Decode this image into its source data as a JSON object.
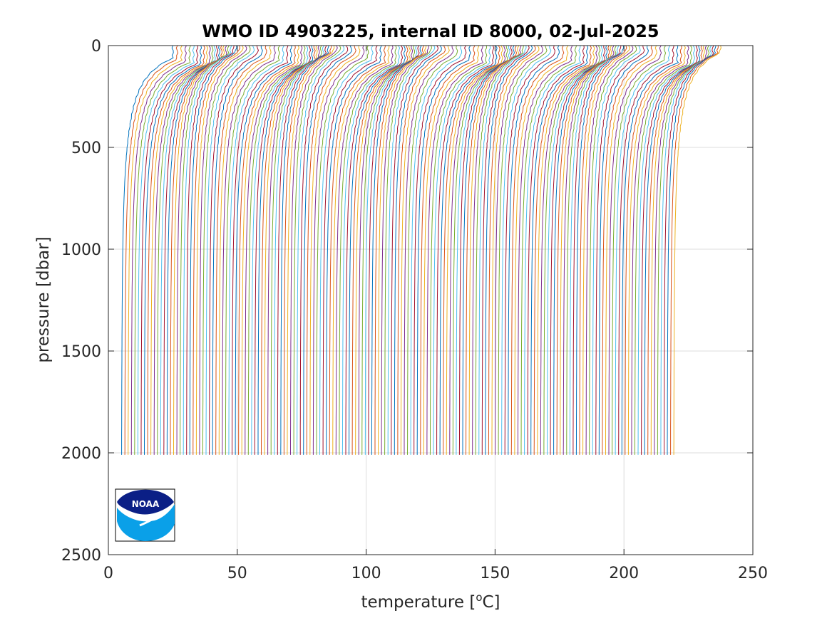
{
  "chart_data": {
    "type": "line",
    "title": "WMO ID 4903225, internal ID 8000, 02-Jul-2025",
    "xlabel": "temperature [",
    "xlabel_unit_sup": "o",
    "xlabel_unit_tail": "C]",
    "ylabel": "pressure [dbar]",
    "xlim": [
      0,
      250
    ],
    "ylim": [
      0,
      2500
    ],
    "y_reversed": true,
    "grid": true,
    "x_ticks": [
      "0",
      "50",
      "100",
      "150",
      "200",
      "250"
    ],
    "y_ticks": [
      "0",
      "500",
      "1000",
      "1500",
      "2000",
      "2500"
    ],
    "series_layout": "waterfall: each profile offset ~1.26 °C to the right of the previous",
    "profile_count": 171,
    "profile_offset_start": 5,
    "profile_offset_step": 1.26,
    "profile_surface_temp": 22,
    "profile_deep_temp": 2,
    "profile_pressure_top": 0,
    "profile_pressure_bottom": 2010,
    "colors": [
      "#0072bd",
      "#d95319",
      "#edb120",
      "#7e2f8e",
      "#77ac30",
      "#4dbeee",
      "#a2142f"
    ]
  },
  "logo": {
    "text": "NOAA",
    "colors": {
      "navy": "#0b1f86",
      "sky": "#0aa0e8"
    }
  }
}
